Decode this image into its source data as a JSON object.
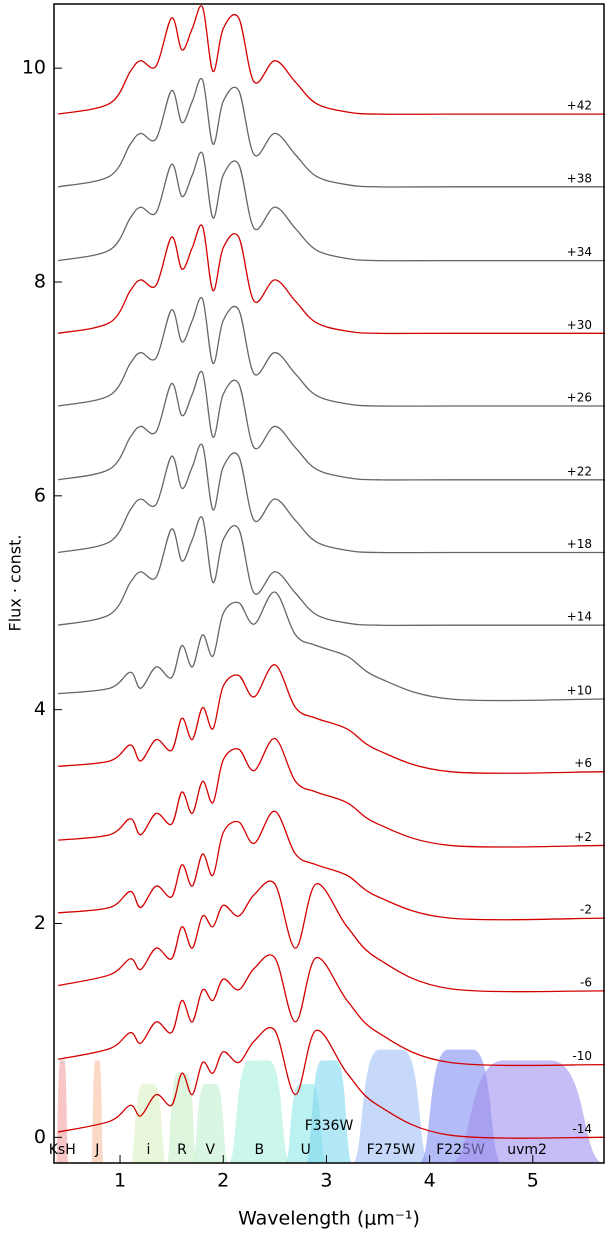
{
  "chart_data": {
    "type": "line",
    "x_label": "Wavelength (μm⁻¹)",
    "y_label": "Flux · const.",
    "xlim": [
      0.36,
      5.69
    ],
    "ylim": [
      -0.24,
      10.6
    ],
    "xticks": [
      1,
      2,
      3,
      4,
      5
    ],
    "yticks": [
      0,
      2,
      4,
      6,
      8,
      10
    ],
    "x": [
      0.4,
      0.9,
      1.1,
      1.2,
      1.35,
      1.5,
      1.6,
      1.7,
      1.8,
      1.9,
      2.0,
      2.15,
      2.3,
      2.5,
      2.7,
      2.9,
      3.2,
      3.5,
      4.2,
      5.7
    ],
    "series": [
      {
        "name": "-14",
        "color": "#d40000",
        "values": [
          0.05,
          0.15,
          0.3,
          0.2,
          0.4,
          0.3,
          0.6,
          0.4,
          0.7,
          0.6,
          0.8,
          0.7,
          0.9,
          1.0,
          0.4,
          1.0,
          0.6,
          0.3,
          0.02,
          0
        ]
      },
      {
        "name": "-10",
        "color": "#d40000",
        "values": [
          0.73,
          0.83,
          0.98,
          0.88,
          1.08,
          0.98,
          1.28,
          1.08,
          1.38,
          1.28,
          1.48,
          1.38,
          1.58,
          1.68,
          1.08,
          1.68,
          1.28,
          0.98,
          0.7,
          0.68
        ]
      },
      {
        "name": "-6",
        "color": "#d40000",
        "values": [
          1.42,
          1.52,
          1.67,
          1.57,
          1.77,
          1.67,
          1.97,
          1.77,
          2.07,
          1.97,
          2.17,
          2.07,
          2.27,
          2.37,
          1.77,
          2.37,
          1.97,
          1.67,
          1.39,
          1.37
        ]
      },
      {
        "name": "-2",
        "color": "#d40000",
        "values": [
          2.1,
          2.15,
          2.3,
          2.15,
          2.35,
          2.25,
          2.55,
          2.35,
          2.65,
          2.45,
          2.85,
          2.95,
          2.75,
          3.05,
          2.65,
          2.55,
          2.45,
          2.25,
          2.05,
          2.05
        ]
      },
      {
        "name": "+2",
        "color": "#d40000",
        "values": [
          2.78,
          2.83,
          2.98,
          2.83,
          3.03,
          2.93,
          3.23,
          3.03,
          3.33,
          3.13,
          3.53,
          3.63,
          3.43,
          3.73,
          3.33,
          3.23,
          3.13,
          2.93,
          2.73,
          2.73
        ]
      },
      {
        "name": "+6",
        "color": "#d40000",
        "values": [
          3.47,
          3.52,
          3.67,
          3.52,
          3.72,
          3.62,
          3.92,
          3.72,
          4.02,
          3.82,
          4.22,
          4.32,
          4.12,
          4.42,
          4.02,
          3.92,
          3.82,
          3.62,
          3.42,
          3.42
        ]
      },
      {
        "name": "+10",
        "color": "#666666",
        "values": [
          4.15,
          4.2,
          4.35,
          4.2,
          4.4,
          4.3,
          4.6,
          4.4,
          4.7,
          4.5,
          4.9,
          5.0,
          4.8,
          5.1,
          4.7,
          4.6,
          4.5,
          4.3,
          4.1,
          4.1
        ]
      },
      {
        "name": "+14",
        "color": "#666666",
        "values": [
          4.79,
          4.89,
          5.19,
          5.29,
          5.24,
          5.69,
          5.39,
          5.59,
          5.79,
          5.19,
          5.59,
          5.69,
          5.09,
          5.29,
          5.09,
          4.89,
          4.81,
          4.79,
          4.79,
          4.79
        ]
      },
      {
        "name": "+18",
        "color": "#666666",
        "values": [
          5.47,
          5.57,
          5.87,
          5.97,
          5.92,
          6.37,
          6.07,
          6.27,
          6.47,
          5.87,
          6.27,
          6.37,
          5.77,
          5.97,
          5.77,
          5.57,
          5.49,
          5.47,
          5.47,
          5.47
        ]
      },
      {
        "name": "+22",
        "color": "#666666",
        "values": [
          6.15,
          6.25,
          6.55,
          6.65,
          6.6,
          7.05,
          6.75,
          6.95,
          7.15,
          6.55,
          6.95,
          7.05,
          6.45,
          6.65,
          6.45,
          6.25,
          6.17,
          6.15,
          6.15,
          6.15
        ]
      },
      {
        "name": "+26",
        "color": "#666666",
        "values": [
          6.84,
          6.94,
          7.24,
          7.34,
          7.29,
          7.74,
          7.44,
          7.64,
          7.84,
          7.24,
          7.64,
          7.74,
          7.14,
          7.34,
          7.14,
          6.94,
          6.86,
          6.84,
          6.84,
          6.84
        ]
      },
      {
        "name": "+30",
        "color": "#d40000",
        "values": [
          7.52,
          7.62,
          7.92,
          8.02,
          7.97,
          8.42,
          8.12,
          8.32,
          8.52,
          7.92,
          8.32,
          8.42,
          7.82,
          8.02,
          7.82,
          7.62,
          7.54,
          7.52,
          7.52,
          7.52
        ]
      },
      {
        "name": "+34",
        "color": "#666666",
        "values": [
          8.2,
          8.3,
          8.6,
          8.7,
          8.65,
          9.1,
          8.8,
          9.0,
          9.2,
          8.6,
          9.0,
          9.1,
          8.5,
          8.7,
          8.5,
          8.3,
          8.22,
          8.2,
          8.2,
          8.2
        ]
      },
      {
        "name": "+38",
        "color": "#666666",
        "values": [
          8.89,
          8.99,
          9.29,
          9.39,
          9.34,
          9.79,
          9.49,
          9.69,
          9.89,
          9.29,
          9.69,
          9.79,
          9.19,
          9.39,
          9.19,
          8.99,
          8.91,
          8.89,
          8.89,
          8.89
        ]
      },
      {
        "name": "+42",
        "color": "#d40000",
        "values": [
          9.57,
          9.67,
          9.97,
          10.07,
          10.02,
          10.47,
          10.17,
          10.37,
          10.57,
          9.97,
          10.37,
          10.47,
          9.87,
          10.07,
          9.87,
          9.67,
          9.59,
          9.57,
          9.57,
          9.57
        ]
      }
    ],
    "bands": [
      {
        "name": "KsH",
        "range": [
          0.38,
          0.5
        ],
        "peak": 0.72,
        "color": "#f4a0a0"
      },
      {
        "name": "J",
        "range": [
          0.72,
          0.84
        ],
        "peak": 0.72,
        "color": "#f8c0a0"
      },
      {
        "name": "i",
        "range": [
          1.1,
          1.45
        ],
        "peak": 0.5,
        "color": "#d8f0c0"
      },
      {
        "name": "R",
        "range": [
          1.45,
          1.75
        ],
        "peak": 0.6,
        "color": "#c8f0c8"
      },
      {
        "name": "V",
        "range": [
          1.7,
          2.05
        ],
        "peak": 0.5,
        "color": "#c0f0d0"
      },
      {
        "name": "B",
        "range": [
          2.05,
          2.65
        ],
        "peak": 0.72,
        "color": "#a8f0e0"
      },
      {
        "name": "U",
        "range": [
          2.6,
          3.0
        ],
        "peak": 0.5,
        "color": "#90e8e8"
      },
      {
        "name": "F336W",
        "range": [
          2.8,
          3.25
        ],
        "peak": 0.72,
        "color": "#80d8f0"
      },
      {
        "name": "F275W",
        "range": [
          3.25,
          4.0
        ],
        "peak": 0.82,
        "color": "#a0c0f8"
      },
      {
        "name": "F225W",
        "range": [
          3.9,
          4.7
        ],
        "peak": 0.82,
        "color": "#8090f0"
      },
      {
        "name": "uvm2",
        "range": [
          4.2,
          5.69
        ],
        "peak": 0.72,
        "color": "#a090f0"
      }
    ]
  }
}
